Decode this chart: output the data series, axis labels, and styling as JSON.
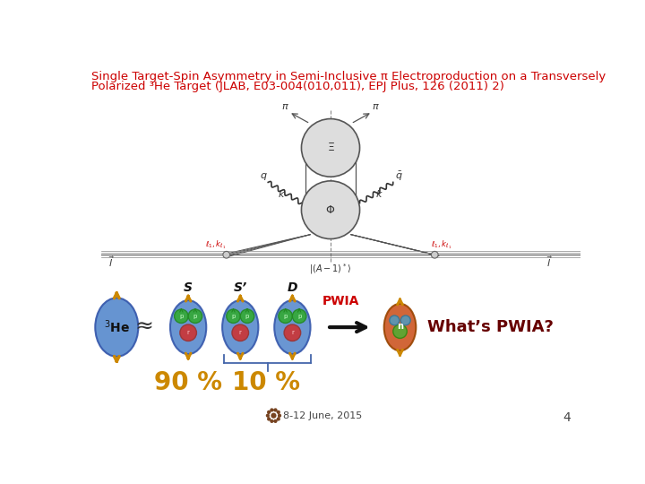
{
  "title_line1": "Single Target-Spin Asymmetry in Semi-Inclusive π Electroproduction on a Transversely",
  "title_line2": "Polarized ³He Target (JLAB, E03-004(010,011), EPJ Plus, 126 (2011) 2)",
  "title_color": "#cc0000",
  "title_fontsize": 9.5,
  "page_number": "4",
  "page_number_color": "#444444",
  "footer_text": "8-12 June, 2015",
  "footer_color": "#444444",
  "footer_fontsize": 8,
  "s_label": "S",
  "sp_label": "S’",
  "d_label": "D",
  "pwia_label": "PWIA",
  "pwia_color": "#cc0000",
  "whats_pwia_text": "What’s PWIA?",
  "whats_pwia_color": "#660000",
  "he3_label": "³He",
  "approx_symbol": "≈",
  "pct_90": "90 %",
  "pct_10": "10 %",
  "pct_color": "#cc8800",
  "pct_fontsize": 20,
  "bg_color": "#ffffff",
  "bracket_color": "#4466aa",
  "gear_color": "#774422"
}
